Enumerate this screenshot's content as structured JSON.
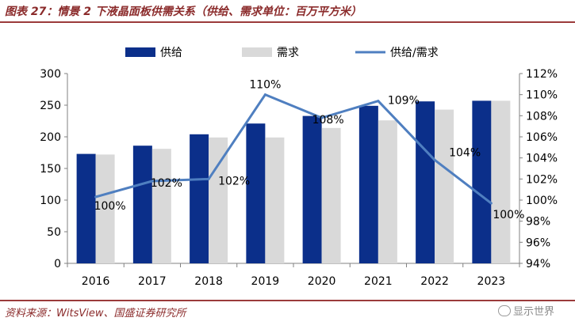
{
  "header": {
    "title": "图表 27：情景 2 下液晶面板供需关系（供给、需求单位：百万平方米）"
  },
  "footer": {
    "source": "资料来源：WitsView、国盛证券研究所",
    "watermark": "显示世界"
  },
  "chart_data": {
    "type": "bar",
    "categories": [
      "2016",
      "2017",
      "2018",
      "2019",
      "2020",
      "2021",
      "2022",
      "2023"
    ],
    "series": [
      {
        "name": "供给",
        "type": "bar",
        "axis": "left",
        "color": "#0b2f8a",
        "values": [
          173,
          186,
          204,
          221,
          233,
          249,
          256,
          257
        ]
      },
      {
        "name": "需求",
        "type": "bar",
        "axis": "left",
        "color": "#d9d9d9",
        "values": [
          172,
          181,
          199,
          199,
          214,
          226,
          243,
          257
        ]
      },
      {
        "name": "供给/需求",
        "type": "line",
        "axis": "right",
        "color": "#4f7fc0",
        "values": [
          100.3,
          101.8,
          102.0,
          110.0,
          107.8,
          109.4,
          103.8,
          99.7
        ],
        "labels": [
          "100%",
          "102%",
          "102%",
          "110%",
          "108%",
          "109%",
          "104%",
          "100%"
        ]
      }
    ],
    "y_left": {
      "min": 0,
      "max": 300,
      "ticks": [
        0,
        50,
        100,
        150,
        200,
        250,
        300
      ]
    },
    "y_right": {
      "min": 94,
      "max": 112,
      "ticks": [
        94,
        96,
        98,
        100,
        102,
        104,
        106,
        108,
        110,
        112
      ],
      "tick_labels": [
        "94%",
        "96%",
        "98%",
        "100%",
        "102%",
        "104%",
        "106%",
        "108%",
        "110%",
        "112%"
      ]
    },
    "legend": {
      "position": "top-center"
    },
    "grid": false
  }
}
